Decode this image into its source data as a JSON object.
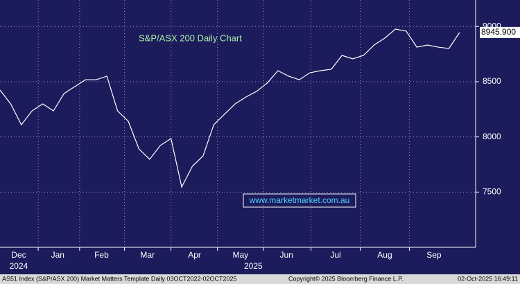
{
  "chart_data": {
    "type": "line",
    "title": "S&P/ASX 200 Daily Chart",
    "annotation": "www.marketmarket.com.au",
    "color": "#ffffff",
    "grid": true,
    "values": [
      8424,
      8299,
      8110,
      8236,
      8299,
      8236,
      8393,
      8456,
      8518,
      8518,
      8550,
      8236,
      8142,
      7891,
      7797,
      7922,
      7985,
      7546,
      7734,
      7828,
      8110,
      8205,
      8299,
      8361,
      8412,
      8487,
      8600,
      8550,
      8518,
      8581,
      8600,
      8613,
      8738,
      8707,
      8738,
      8832,
      8895,
      8976,
      8958,
      8813,
      8832,
      8813,
      8801,
      8945.9
    ],
    "value_labels": [
      null,
      null,
      null,
      null,
      null,
      null,
      null,
      null,
      null,
      null,
      null,
      null,
      null,
      null,
      null,
      null,
      null,
      null,
      null,
      null,
      null,
      null,
      null,
      null,
      null,
      null,
      null,
      null,
      null,
      null,
      null,
      null,
      null,
      null,
      null,
      null,
      null,
      null,
      null,
      null,
      null,
      null,
      null,
      "8945.900"
    ],
    "xlim": [
      0,
      44.5
    ],
    "xticks": [
      {
        "value": 1.75,
        "label": "Dec"
      },
      {
        "value": 5.4,
        "label": "Jan"
      },
      {
        "value": 9.5,
        "label": "Feb"
      },
      {
        "value": 13.8,
        "label": "Mar"
      },
      {
        "value": 18.2,
        "label": "Apr"
      },
      {
        "value": 22.5,
        "label": "May"
      },
      {
        "value": 26.8,
        "label": "Jun"
      },
      {
        "value": 31.4,
        "label": "Jul"
      },
      {
        "value": 36,
        "label": "Aug"
      },
      {
        "value": 40.6,
        "label": "Sep"
      }
    ],
    "year_labels": [
      {
        "value": 1.75,
        "label": "2024"
      },
      {
        "value": 23.7,
        "label": "2025"
      }
    ],
    "ylim": [
      7000,
      9240
    ],
    "yticks": [
      7500,
      8000,
      8500,
      9000
    ]
  },
  "footer": {
    "left": "AS51 Index (S&P/ASX 200) Market Matters Template Daily 03OCT2022-02OCT2025",
    "center": "Copyright© 2025 Bloomberg Finance L.P.",
    "right": "02-Oct-2025 16:49:11"
  }
}
